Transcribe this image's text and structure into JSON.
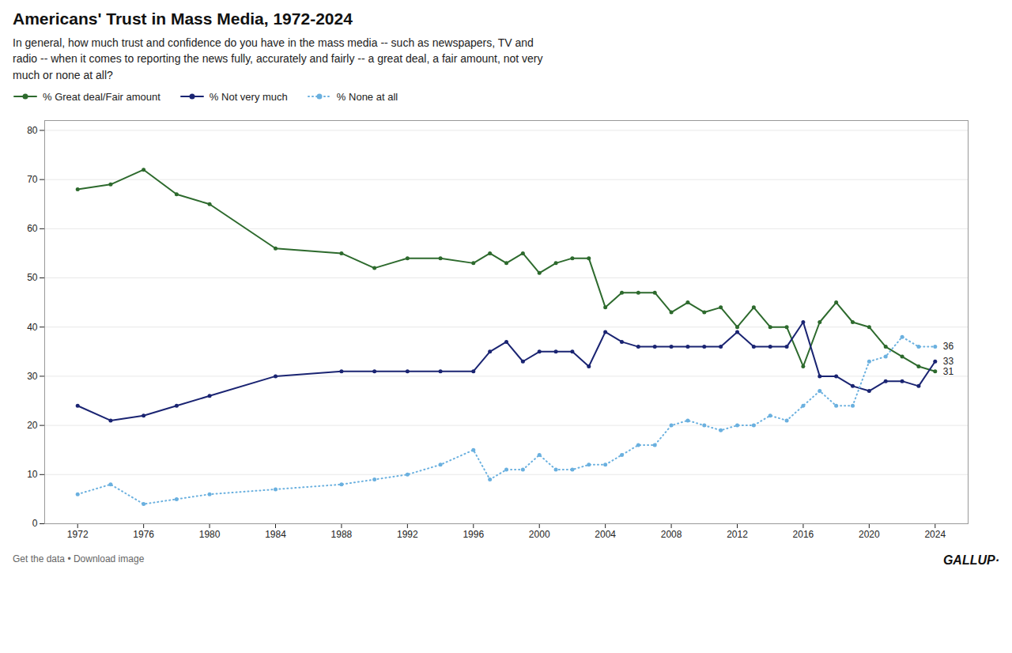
{
  "chart_data": {
    "type": "line",
    "title": "Americans' Trust in Mass Media, 1972-2024",
    "subtitle": "In general, how much trust and confidence do you have in the mass media -- such as newspapers, TV and\nradio -- when it comes to reporting the news fully, accurately and fairly -- a great deal, a fair amount, not very\nmuch or none at all?",
    "footer_left": "Get the data • Download image",
    "footer_right": "GALLUP·",
    "x": [
      1972,
      1974,
      1976,
      1978,
      1980,
      1984,
      1988,
      1990,
      1992,
      1994,
      1996,
      1997,
      1998,
      1999,
      2000,
      2001,
      2002,
      2003,
      2004,
      2005,
      2006,
      2007,
      2008,
      2009,
      2010,
      2011,
      2012,
      2013,
      2014,
      2015,
      2016,
      2017,
      2018,
      2019,
      2020,
      2021,
      2022,
      2023,
      2024
    ],
    "series": [
      {
        "name": "% Great deal/Fair amount",
        "color": "#2d6a2d",
        "marker": "circle",
        "line_style": "solid",
        "values": [
          68,
          69,
          72,
          67,
          65,
          56,
          55,
          52,
          54,
          54,
          53,
          55,
          53,
          55,
          51,
          53,
          54,
          54,
          44,
          47,
          47,
          47,
          43,
          45,
          43,
          44,
          40,
          44,
          40,
          40,
          32,
          41,
          45,
          41,
          40,
          36,
          34,
          32,
          31
        ]
      },
      {
        "name": "% Not very much",
        "color": "#1a2472",
        "marker": "circle",
        "line_style": "solid",
        "values": [
          24,
          21,
          22,
          24,
          26,
          30,
          31,
          31,
          31,
          31,
          31,
          35,
          37,
          33,
          35,
          35,
          35,
          32,
          39,
          37,
          36,
          36,
          36,
          36,
          36,
          36,
          39,
          36,
          36,
          36,
          41,
          30,
          30,
          28,
          27,
          29,
          29,
          28,
          33
        ]
      },
      {
        "name": "% None at all",
        "color": "#6ab0df",
        "marker": "circle",
        "line_style": "dotted",
        "values": [
          6,
          8,
          4,
          5,
          6,
          7,
          8,
          9,
          10,
          12,
          15,
          9,
          11,
          11,
          14,
          11,
          11,
          12,
          12,
          14,
          16,
          16,
          20,
          21,
          20,
          19,
          20,
          20,
          22,
          21,
          24,
          27,
          24,
          24,
          33,
          34,
          38,
          36,
          36
        ]
      }
    ],
    "annotations": [
      {
        "text": "36",
        "x": 2024,
        "y": 36
      },
      {
        "text": "33",
        "x": 2024,
        "y": 33
      },
      {
        "text": "31",
        "x": 2024,
        "y": 31
      }
    ],
    "xlim": [
      1970,
      2026
    ],
    "xticks": [
      1972,
      1976,
      1980,
      1984,
      1988,
      1992,
      1996,
      2000,
      2004,
      2008,
      2012,
      2016,
      2020,
      2024
    ],
    "ylim": [
      0,
      82
    ],
    "yticks": [
      0,
      10,
      20,
      30,
      40,
      50,
      60,
      70,
      80
    ],
    "grid": "y",
    "legend": "top"
  }
}
